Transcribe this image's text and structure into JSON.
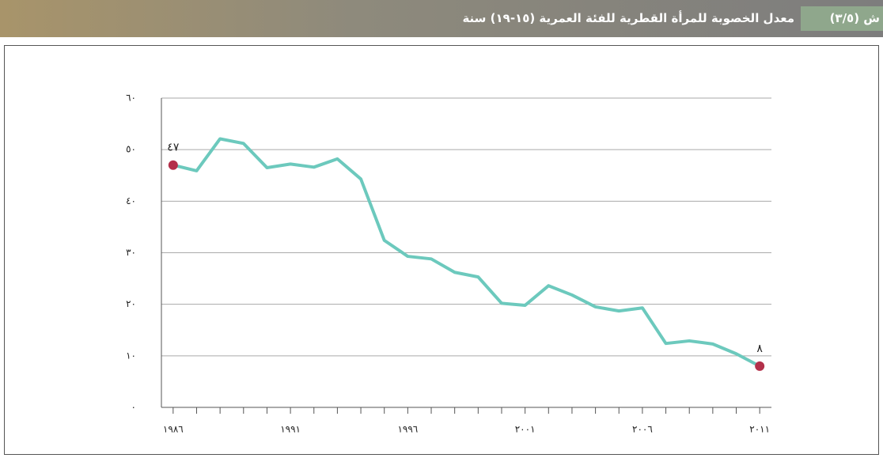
{
  "header": {
    "figure_label": "ش (٣/٥)",
    "title": "معدل الخصوبة للمرأة القطرية للفئة العمرية (١٥-١٩) سنة"
  },
  "chart_data": {
    "type": "line",
    "x": [
      1986,
      1987,
      1988,
      1989,
      1990,
      1991,
      1992,
      1993,
      1994,
      1995,
      1996,
      1997,
      1998,
      1999,
      2000,
      2001,
      2002,
      2003,
      2004,
      2005,
      2006,
      2007,
      2008,
      2009,
      2010,
      2011
    ],
    "series": [
      {
        "color": "#6cc9bd",
        "values": [
          47,
          45.9,
          52.1,
          51.2,
          46.5,
          47.2,
          46.6,
          48.2,
          44.3,
          32.4,
          29.3,
          28.8,
          26.2,
          25.3,
          20.2,
          19.8,
          23.6,
          21.8,
          19.5,
          18.7,
          19.3,
          12.4,
          12.9,
          12.3,
          10.4,
          8
        ],
        "value_labels": [
          "٤٧",
          null,
          null,
          null,
          null,
          null,
          null,
          null,
          null,
          null,
          null,
          null,
          null,
          null,
          null,
          null,
          null,
          null,
          null,
          null,
          null,
          null,
          null,
          null,
          null,
          "٨"
        ]
      }
    ],
    "highlight_color": "#b3304a",
    "xlim": [
      1985.5,
      2011.5
    ],
    "xticks": [
      {
        "value": 1986,
        "label": "١٩٨٦"
      },
      {
        "value": 1991,
        "label": "١٩٩١"
      },
      {
        "value": 1996,
        "label": "١٩٩٦"
      },
      {
        "value": 2001,
        "label": "٢٠٠١"
      },
      {
        "value": 2006,
        "label": "٢٠٠٦"
      },
      {
        "value": 2011,
        "label": "٢٠١١"
      }
    ],
    "ylim": [
      0,
      60
    ],
    "yticks": [
      {
        "value": 0,
        "label": "٠"
      },
      {
        "value": 10,
        "label": "١٠"
      },
      {
        "value": 20,
        "label": "٢٠"
      },
      {
        "value": 30,
        "label": "٣٠"
      },
      {
        "value": 40,
        "label": "٤٠"
      },
      {
        "value": 50,
        "label": "٥٠"
      },
      {
        "value": 60,
        "label": "٦٠"
      }
    ],
    "grid": true
  }
}
